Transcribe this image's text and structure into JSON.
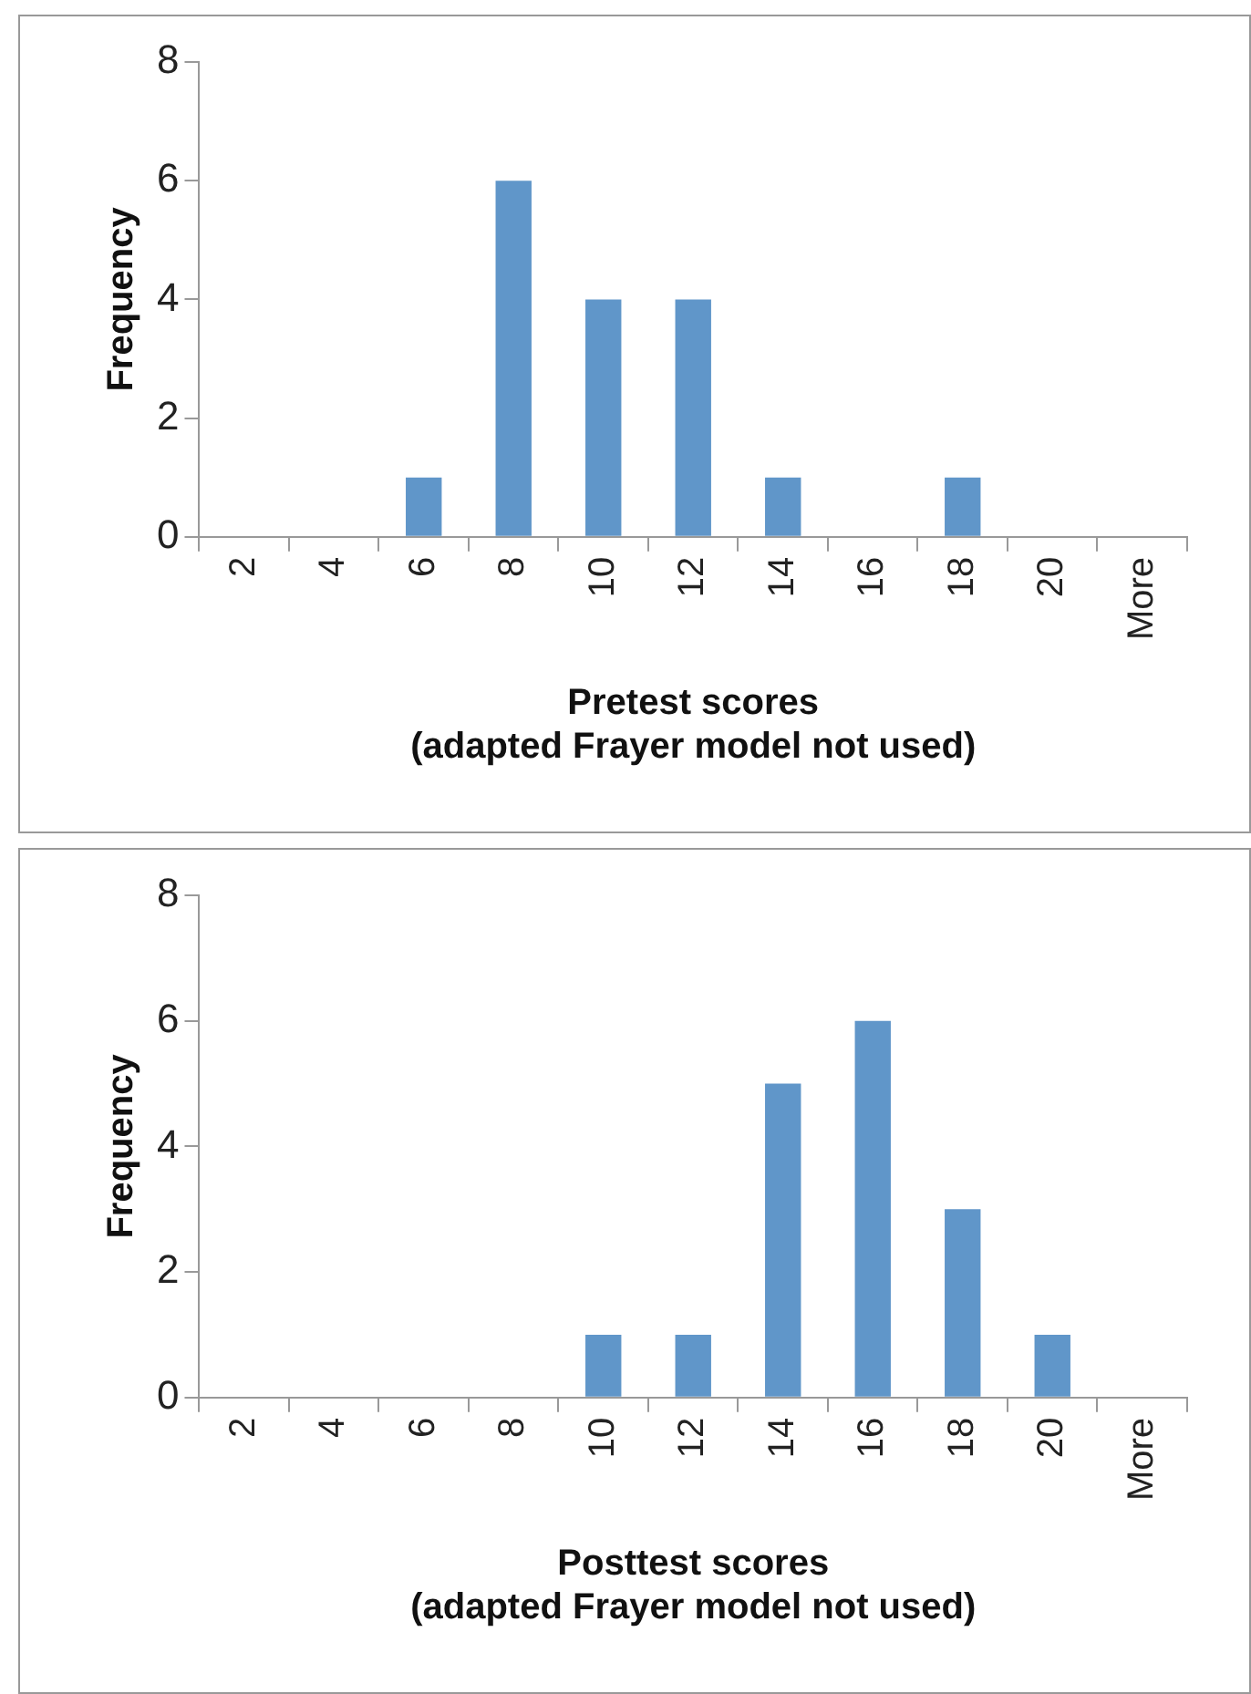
{
  "chart_data": [
    {
      "type": "bar",
      "xlabel": "Pretest scores\n(adapted Frayer model not used)",
      "ylabel": "Frequency",
      "categories": [
        "2",
        "4",
        "6",
        "8",
        "10",
        "12",
        "14",
        "16",
        "18",
        "20",
        "More"
      ],
      "series": [
        {
          "color": "#6096c9",
          "values": [
            0,
            0,
            1,
            6,
            4,
            4,
            1,
            0,
            1,
            0,
            0
          ]
        }
      ],
      "ylim": [
        0,
        8
      ],
      "yticks": [
        0,
        2,
        4,
        6,
        8
      ],
      "grid": false,
      "legend": false
    },
    {
      "type": "bar",
      "xlabel": "Posttest scores\n(adapted Frayer model not used)",
      "ylabel": "Frequency",
      "categories": [
        "2",
        "4",
        "6",
        "8",
        "10",
        "12",
        "14",
        "16",
        "18",
        "20",
        "More"
      ],
      "series": [
        {
          "color": "#6096c9",
          "values": [
            0,
            0,
            0,
            0,
            1,
            1,
            5,
            6,
            3,
            1,
            0
          ]
        }
      ],
      "ylim": [
        0,
        8
      ],
      "yticks": [
        0,
        2,
        4,
        6,
        8
      ],
      "grid": false,
      "legend": false
    }
  ]
}
